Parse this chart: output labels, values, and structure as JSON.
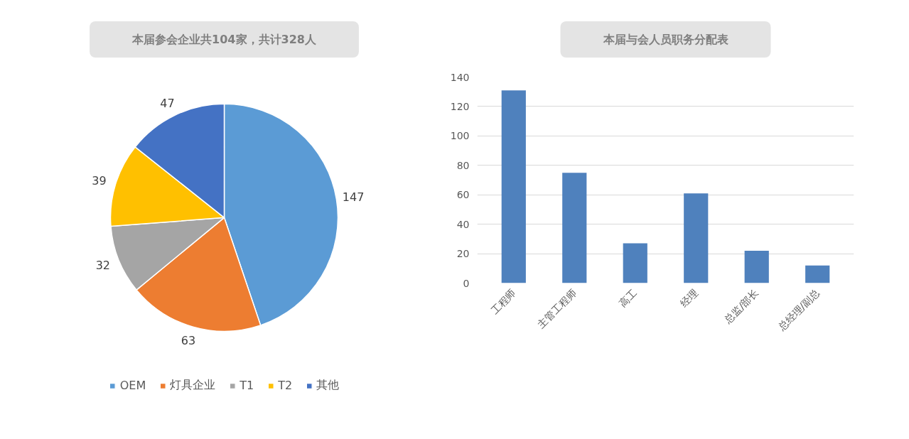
{
  "chart_data": [
    {
      "type": "pie",
      "title": "本届参会企业共104家，共计328人",
      "categories": [
        "OEM",
        "灯具企业",
        "T1",
        "T2",
        "其他"
      ],
      "values": [
        147,
        63,
        32,
        39,
        47
      ],
      "colors": [
        "#5b9bd5",
        "#ed7d31",
        "#a5a5a5",
        "#ffc000",
        "#4472c4"
      ],
      "data_labels": true,
      "legend": "bottom"
    },
    {
      "type": "bar",
      "title": "本届与会人员职务分配表",
      "categories": [
        "工程师",
        "主管工程师",
        "高工",
        "经理",
        "总监/部长",
        "总经理/副总"
      ],
      "values": [
        131,
        75,
        27,
        61,
        22,
        12
      ],
      "color": "#4f81bd",
      "ylim": [
        0,
        140
      ],
      "yticks": [
        0,
        20,
        40,
        60,
        80,
        100,
        120,
        140
      ],
      "grid": "y"
    }
  ]
}
